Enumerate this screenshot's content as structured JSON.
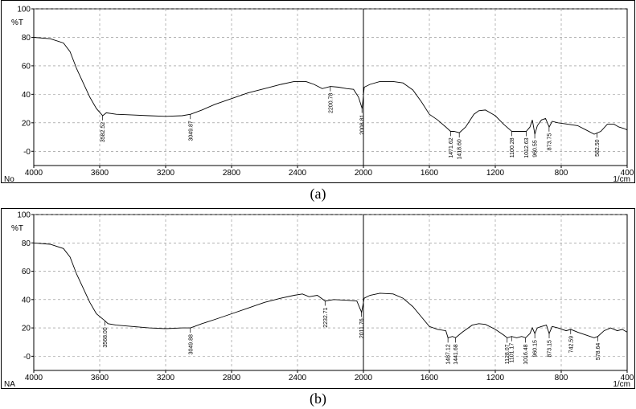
{
  "figure": {
    "caption_a": "(a)",
    "caption_b": "(b)"
  },
  "chart_data": [
    {
      "id": "a",
      "type": "line",
      "ylabel": "%T",
      "xunit": "1/cm",
      "corner_label": "No",
      "xlim": [
        4000,
        400
      ],
      "ylim": [
        -10,
        100
      ],
      "xticks": [
        4000,
        3600,
        3200,
        2800,
        2400,
        2000,
        1600,
        1200,
        800,
        400
      ],
      "yticks": [
        100,
        80,
        60,
        40,
        20,
        0
      ],
      "ytick_labels": [
        "100",
        "80",
        "60",
        "40",
        "20",
        "-0"
      ],
      "grid": true,
      "marker_line_x": 2000,
      "points": [
        [
          4000,
          80
        ],
        [
          3900,
          79
        ],
        [
          3820,
          76
        ],
        [
          3780,
          70
        ],
        [
          3740,
          58
        ],
        [
          3700,
          48
        ],
        [
          3660,
          38
        ],
        [
          3620,
          30
        ],
        [
          3582,
          25
        ],
        [
          3560,
          27
        ],
        [
          3500,
          26
        ],
        [
          3400,
          25.5
        ],
        [
          3300,
          25
        ],
        [
          3200,
          24.5
        ],
        [
          3100,
          25
        ],
        [
          3049,
          26
        ],
        [
          2980,
          29
        ],
        [
          2900,
          33
        ],
        [
          2800,
          37
        ],
        [
          2700,
          41
        ],
        [
          2600,
          44
        ],
        [
          2500,
          47
        ],
        [
          2420,
          49
        ],
        [
          2350,
          49
        ],
        [
          2300,
          47
        ],
        [
          2250,
          44
        ],
        [
          2200,
          45.5
        ],
        [
          2150,
          45
        ],
        [
          2100,
          44
        ],
        [
          2060,
          43.5
        ],
        [
          2030,
          38
        ],
        [
          2008,
          30
        ],
        [
          1995,
          45
        ],
        [
          1960,
          47
        ],
        [
          1900,
          49
        ],
        [
          1820,
          49
        ],
        [
          1760,
          48
        ],
        [
          1700,
          43
        ],
        [
          1650,
          35
        ],
        [
          1600,
          26
        ],
        [
          1550,
          22
        ],
        [
          1500,
          17
        ],
        [
          1471,
          14
        ],
        [
          1450,
          14
        ],
        [
          1418,
          13
        ],
        [
          1380,
          17
        ],
        [
          1330,
          26
        ],
        [
          1300,
          28.5
        ],
        [
          1260,
          29
        ],
        [
          1200,
          25
        ],
        [
          1150,
          19
        ],
        [
          1100,
          14
        ],
        [
          1050,
          14
        ],
        [
          1012,
          14
        ],
        [
          990,
          17
        ],
        [
          975,
          22
        ],
        [
          960,
          12
        ],
        [
          945,
          18
        ],
        [
          920,
          22
        ],
        [
          895,
          23
        ],
        [
          873,
          17
        ],
        [
          855,
          21
        ],
        [
          820,
          20
        ],
        [
          760,
          19
        ],
        [
          700,
          18
        ],
        [
          650,
          15
        ],
        [
          600,
          12
        ],
        [
          560,
          14
        ],
        [
          520,
          19
        ],
        [
          480,
          19
        ],
        [
          450,
          17
        ],
        [
          420,
          16
        ],
        [
          400,
          15
        ]
      ],
      "peak_labels": [
        {
          "x": 3582.52,
          "text": "3582.52"
        },
        {
          "x": 3049.87,
          "text": "3049.87"
        },
        {
          "x": 2200.78,
          "text": "2200.78"
        },
        {
          "x": 2008.81,
          "text": "2008.81"
        },
        {
          "x": 1471.62,
          "text": "1471.62"
        },
        {
          "x": 1418.6,
          "text": "1418.60"
        },
        {
          "x": 1100.28,
          "text": "1100.28"
        },
        {
          "x": 1012.63,
          "text": "1012.63"
        },
        {
          "x": 960.55,
          "text": "960.55"
        },
        {
          "x": 873.75,
          "text": "873.75"
        },
        {
          "x": 582.5,
          "text": "582.50"
        }
      ]
    },
    {
      "id": "b",
      "type": "line",
      "ylabel": "%T",
      "xunit": "1/cm",
      "corner_label": "NA",
      "xlim": [
        4000,
        400
      ],
      "ylim": [
        -10,
        100
      ],
      "xticks": [
        4000,
        3600,
        3200,
        2800,
        2400,
        2000,
        1600,
        1200,
        800,
        400
      ],
      "yticks": [
        100,
        80,
        60,
        40,
        20,
        0
      ],
      "ytick_labels": [
        "100",
        "80",
        "60",
        "40",
        "20",
        "-0"
      ],
      "grid": true,
      "marker_line_x": 2000,
      "points": [
        [
          4000,
          80
        ],
        [
          3900,
          79
        ],
        [
          3820,
          76
        ],
        [
          3780,
          70
        ],
        [
          3740,
          58
        ],
        [
          3700,
          48
        ],
        [
          3660,
          38
        ],
        [
          3620,
          30
        ],
        [
          3568,
          25
        ],
        [
          3550,
          23
        ],
        [
          3500,
          22
        ],
        [
          3400,
          21
        ],
        [
          3300,
          20
        ],
        [
          3200,
          19.5
        ],
        [
          3100,
          20
        ],
        [
          3049,
          20
        ],
        [
          2980,
          23
        ],
        [
          2900,
          26
        ],
        [
          2800,
          30
        ],
        [
          2700,
          34
        ],
        [
          2600,
          38
        ],
        [
          2500,
          41
        ],
        [
          2420,
          43
        ],
        [
          2370,
          44
        ],
        [
          2330,
          42
        ],
        [
          2280,
          43
        ],
        [
          2232,
          39
        ],
        [
          2180,
          40
        ],
        [
          2100,
          39.5
        ],
        [
          2040,
          39
        ],
        [
          2011,
          31
        ],
        [
          1995,
          41
        ],
        [
          1960,
          43
        ],
        [
          1900,
          44.5
        ],
        [
          1820,
          44
        ],
        [
          1760,
          41
        ],
        [
          1700,
          35
        ],
        [
          1650,
          28
        ],
        [
          1600,
          21
        ],
        [
          1550,
          19
        ],
        [
          1500,
          18
        ],
        [
          1487,
          13
        ],
        [
          1460,
          14
        ],
        [
          1441,
          13
        ],
        [
          1400,
          17
        ],
        [
          1340,
          22
        ],
        [
          1300,
          23
        ],
        [
          1260,
          22.5
        ],
        [
          1200,
          19
        ],
        [
          1150,
          15
        ],
        [
          1128,
          13
        ],
        [
          1101,
          14
        ],
        [
          1070,
          13
        ],
        [
          1040,
          14
        ],
        [
          1016,
          13
        ],
        [
          990,
          16
        ],
        [
          975,
          20
        ],
        [
          960,
          16
        ],
        [
          945,
          20
        ],
        [
          920,
          21
        ],
        [
          890,
          22
        ],
        [
          873,
          16
        ],
        [
          855,
          21
        ],
        [
          820,
          20
        ],
        [
          770,
          18
        ],
        [
          742,
          19
        ],
        [
          700,
          17
        ],
        [
          650,
          15
        ],
        [
          600,
          13
        ],
        [
          578,
          14
        ],
        [
          540,
          18
        ],
        [
          500,
          20
        ],
        [
          460,
          18
        ],
        [
          430,
          19
        ],
        [
          400,
          17
        ]
      ],
      "peak_labels": [
        {
          "x": 3568.0,
          "text": "3568.00"
        },
        {
          "x": 3049.88,
          "text": "3049.88"
        },
        {
          "x": 2232.71,
          "text": "2232.71"
        },
        {
          "x": 2011.76,
          "text": "2011.76"
        },
        {
          "x": 1487.12,
          "text": "1487.12"
        },
        {
          "x": 1441.68,
          "text": "1441.68"
        },
        {
          "x": 1128.07,
          "text": "1128.07"
        },
        {
          "x": 1101.17,
          "text": "1101.17"
        },
        {
          "x": 1016.48,
          "text": "1016.48"
        },
        {
          "x": 960.15,
          "text": "960.15"
        },
        {
          "x": 873.15,
          "text": "873.15"
        },
        {
          "x": 742.59,
          "text": "742.59"
        },
        {
          "x": 578.64,
          "text": "578.64"
        }
      ]
    }
  ]
}
